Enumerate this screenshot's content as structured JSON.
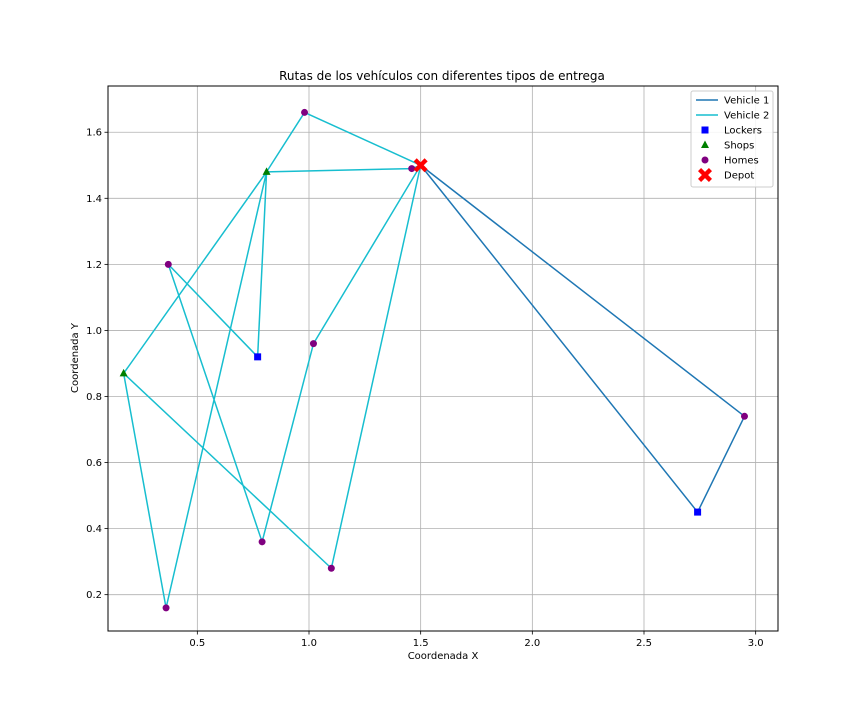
{
  "chart_data": {
    "type": "scatter",
    "title": "Rutas de los vehículos con diferentes tipos de entrega",
    "xlabel": "Coordenada X",
    "ylabel": "Coordenada Y",
    "xlim": [
      0.1,
      3.1
    ],
    "ylim": [
      0.09,
      1.74
    ],
    "xticks": [
      0.5,
      1.0,
      1.5,
      2.0,
      2.5,
      3.0
    ],
    "xtick_labels": [
      "0.5",
      "1.0",
      "1.5",
      "2.0",
      "2.5",
      "3.0"
    ],
    "yticks": [
      0.2,
      0.4,
      0.6,
      0.8,
      1.0,
      1.2,
      1.4,
      1.6
    ],
    "ytick_labels": [
      "0.2",
      "0.4",
      "0.6",
      "0.8",
      "1.0",
      "1.2",
      "1.4",
      "1.6"
    ],
    "grid": true,
    "legend_position": "top-right",
    "routes": [
      {
        "name": "Vehicle 1",
        "color": "#1f77b4",
        "points": [
          [
            1.5,
            1.5
          ],
          [
            2.95,
            0.74
          ],
          [
            2.74,
            0.45
          ],
          [
            1.5,
            1.5
          ]
        ]
      },
      {
        "name": "Vehicle 2",
        "color": "#17becf",
        "points": [
          [
            1.5,
            1.5
          ],
          [
            1.46,
            1.49
          ],
          [
            0.81,
            1.48
          ],
          [
            0.17,
            0.87
          ],
          [
            1.1,
            0.28
          ],
          [
            1.5,
            1.5
          ],
          [
            1.02,
            0.96
          ],
          [
            0.79,
            0.36
          ],
          [
            0.37,
            1.2
          ],
          [
            0.77,
            0.92
          ],
          [
            0.81,
            1.48
          ],
          [
            0.36,
            0.16
          ],
          [
            0.17,
            0.87
          ],
          [
            0.81,
            1.48
          ],
          [
            0.98,
            1.66
          ],
          [
            1.5,
            1.5
          ]
        ]
      }
    ],
    "markers": [
      {
        "name": "Lockers",
        "shape": "square",
        "color": "#0000ff",
        "points": [
          [
            0.77,
            0.92
          ],
          [
            2.74,
            0.45
          ]
        ]
      },
      {
        "name": "Shops",
        "shape": "triangle",
        "color": "#008000",
        "points": [
          [
            0.81,
            1.48
          ],
          [
            0.17,
            0.87
          ]
        ]
      },
      {
        "name": "Homes",
        "shape": "circle",
        "color": "#800080",
        "points": [
          [
            0.98,
            1.66
          ],
          [
            1.46,
            1.49
          ],
          [
            0.37,
            1.2
          ],
          [
            1.02,
            0.96
          ],
          [
            2.95,
            0.74
          ],
          [
            0.79,
            0.36
          ],
          [
            1.1,
            0.28
          ],
          [
            0.36,
            0.16
          ]
        ]
      },
      {
        "name": "Depot",
        "shape": "x",
        "color": "#ff0000",
        "points": [
          [
            1.5,
            1.5
          ]
        ]
      }
    ]
  }
}
